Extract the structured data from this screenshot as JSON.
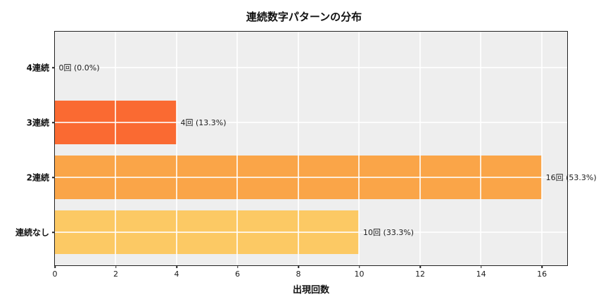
{
  "chart_data": {
    "type": "bar",
    "orientation": "horizontal",
    "title": "連続数字パターンの分布",
    "xlabel": "出現回数",
    "ylabel": "",
    "categories": [
      "4連続",
      "3連続",
      "2連続",
      "連続なし"
    ],
    "values": [
      0,
      4,
      16,
      10
    ],
    "value_labels": [
      "0回 (0.0%)",
      "4回 (13.3%)",
      "16回 (53.3%)",
      "10回 (33.3%)"
    ],
    "bar_colors": [
      null,
      "#fa6a32",
      "#faa548",
      "#fcc964"
    ],
    "xticks": [
      0,
      2,
      4,
      6,
      8,
      10,
      12,
      14,
      16
    ],
    "xlim": [
      0,
      16.83
    ],
    "grid": true,
    "plot_background": "#eeeeee",
    "grid_color": "#ffffff",
    "spine_color": "#222222"
  }
}
